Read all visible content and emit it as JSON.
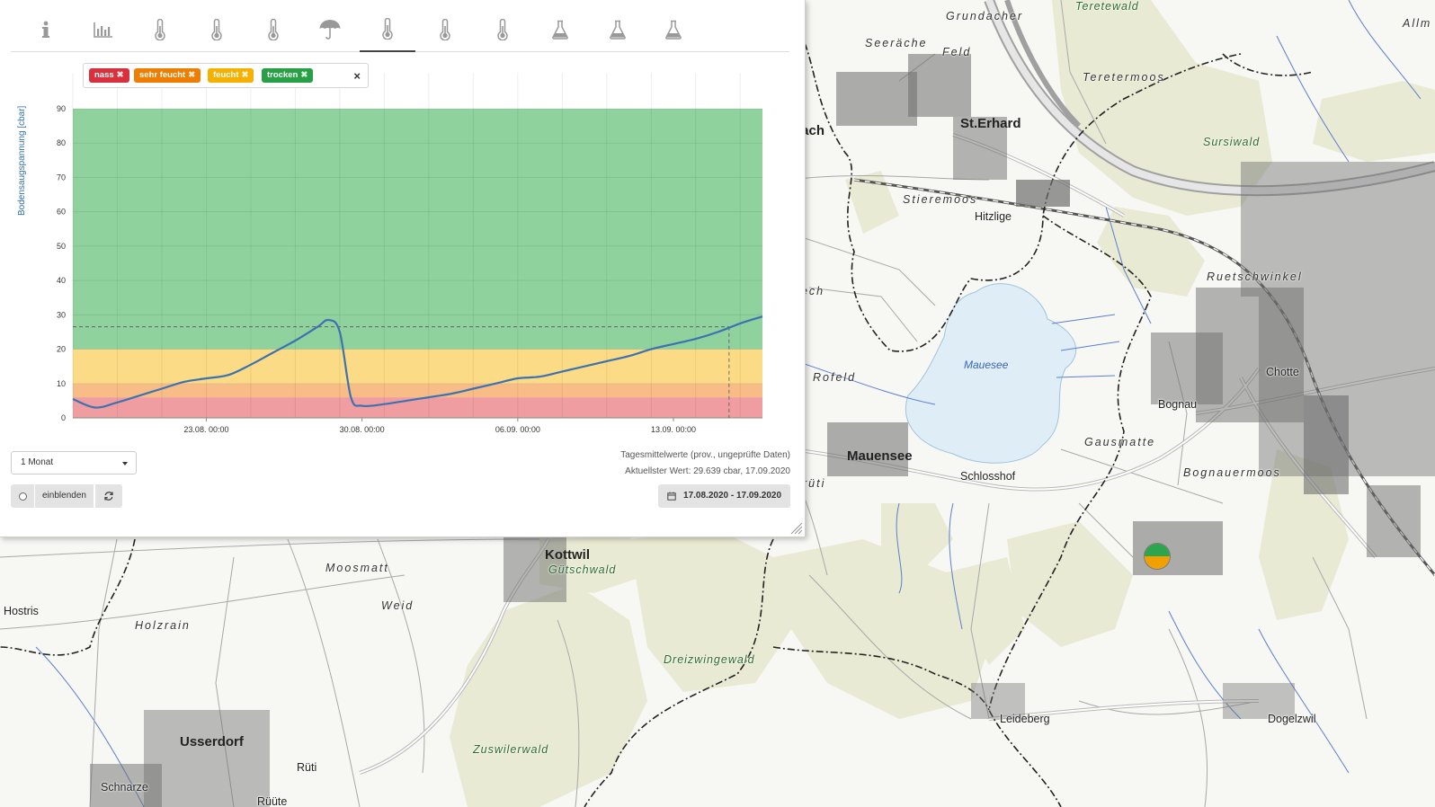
{
  "map": {
    "places": [
      {
        "name": "Grundacher",
        "style": "field"
      },
      {
        "name": "Teretewald",
        "style": "forest"
      },
      {
        "name": "Seeräche",
        "style": "field"
      },
      {
        "name": "Feld",
        "style": "field"
      },
      {
        "name": "Teretermoos",
        "style": "field"
      },
      {
        "name": "Allm",
        "style": "field"
      },
      {
        "name": "bach",
        "style": "big"
      },
      {
        "name": "St.Erhard",
        "style": "big"
      },
      {
        "name": "Sursiwald",
        "style": "forest"
      },
      {
        "name": "Stieremoos",
        "style": "field"
      },
      {
        "name": "Hitzlige",
        "style": "mid"
      },
      {
        "name": "bech",
        "style": "field"
      },
      {
        "name": "Ruetschwinkel",
        "style": "field"
      },
      {
        "name": "Mauesee",
        "style": "water"
      },
      {
        "name": "Rofeld",
        "style": "field"
      },
      {
        "name": "Chotte",
        "style": "mid"
      },
      {
        "name": "Bognau",
        "style": "mid"
      },
      {
        "name": "Gausmatte",
        "style": "field"
      },
      {
        "name": "Mauensee",
        "style": "big"
      },
      {
        "name": "Bognauermoos",
        "style": "field"
      },
      {
        "name": "Schlosshof",
        "style": "mid"
      },
      {
        "name": "rüti",
        "style": "field"
      },
      {
        "name": "Kottwil",
        "style": "big"
      },
      {
        "name": "Gütschwald",
        "style": "forest"
      },
      {
        "name": "Moosmatt",
        "style": "field"
      },
      {
        "name": "Hostris",
        "style": "mid"
      },
      {
        "name": "Weid",
        "style": "field"
      },
      {
        "name": "Holzrain",
        "style": "field"
      },
      {
        "name": "Dreizwingewald",
        "style": "forest"
      },
      {
        "name": "Leideberg",
        "style": "mid"
      },
      {
        "name": "Dogelzwil",
        "style": "mid"
      },
      {
        "name": "Usserdorf",
        "style": "big"
      },
      {
        "name": "Rüti",
        "style": "mid"
      },
      {
        "name": "Zuswilerwald",
        "style": "forest"
      },
      {
        "name": "Schnarze",
        "style": "mid"
      },
      {
        "name": "Rüüte",
        "style": "mid"
      }
    ]
  },
  "tabs": [
    {
      "icon": "info-icon"
    },
    {
      "icon": "bar-chart-icon"
    },
    {
      "icon": "thermometer-icon"
    },
    {
      "icon": "thermometer-icon"
    },
    {
      "icon": "thermometer-icon"
    },
    {
      "icon": "umbrella-icon"
    },
    {
      "icon": "thermometer-icon",
      "active": true
    },
    {
      "icon": "thermometer-icon"
    },
    {
      "icon": "thermometer-icon"
    },
    {
      "icon": "flask-icon"
    },
    {
      "icon": "flask-icon"
    },
    {
      "icon": "flask-icon"
    }
  ],
  "legend": {
    "chips": [
      {
        "label": "nass",
        "color": "#d9303e"
      },
      {
        "label": "sehr feucht",
        "color": "#ef7d00"
      },
      {
        "label": "feucht",
        "color": "#f5b000"
      },
      {
        "label": "trocken",
        "color": "#27a046"
      }
    ],
    "clear_symbol": "×",
    "remove_symbol": "✖"
  },
  "chart_data": {
    "type": "line",
    "ylabel": "Bodensaugspannung [cbar]",
    "xlabel": "",
    "ylim": [
      0,
      90
    ],
    "yticks": [
      0,
      10,
      20,
      30,
      40,
      50,
      60,
      70,
      80,
      90
    ],
    "xlim": [
      "2020-08-17",
      "2020-09-17"
    ],
    "xticks": [
      {
        "date": "2020-08-23",
        "label": "23.08. 00:00"
      },
      {
        "date": "2020-08-30",
        "label": "30.08. 00:00"
      },
      {
        "date": "2020-09-06",
        "label": "06.09. 00:00"
      },
      {
        "date": "2020-09-13",
        "label": "13.09. 00:00"
      }
    ],
    "bands": [
      {
        "name": "nass",
        "from": 0,
        "to": 6,
        "color": "#ef9da0"
      },
      {
        "name": "sehr feucht",
        "from": 6,
        "to": 10,
        "color": "#f8bc86"
      },
      {
        "name": "feucht",
        "from": 10,
        "to": 20,
        "color": "#fbdb85"
      },
      {
        "name": "trocken",
        "from": 20,
        "to": 90,
        "color": "#90d29e"
      }
    ],
    "series": [
      {
        "color": "#3d72b0",
        "x": [
          "2020-08-17",
          "2020-08-18",
          "2020-08-19",
          "2020-08-20",
          "2020-08-21",
          "2020-08-22",
          "2020-08-23",
          "2020-08-24",
          "2020-08-25",
          "2020-08-26",
          "2020-08-27",
          "2020-08-28",
          "2020-08-28T12:00",
          "2020-08-29",
          "2020-08-29T12:00",
          "2020-08-30",
          "2020-08-31",
          "2020-09-01",
          "2020-09-02",
          "2020-09-03",
          "2020-09-04",
          "2020-09-05",
          "2020-09-06",
          "2020-09-07",
          "2020-09-08",
          "2020-09-09",
          "2020-09-10",
          "2020-09-11",
          "2020-09-12",
          "2020-09-13",
          "2020-09-14",
          "2020-09-15",
          "2020-09-16",
          "2020-09-17"
        ],
        "y": [
          5.5,
          3.0,
          4.5,
          6.5,
          8.5,
          10.5,
          11.5,
          12.5,
          15.5,
          19.0,
          22.5,
          26.5,
          28.5,
          25.0,
          6.0,
          3.5,
          4.0,
          5.0,
          6.0,
          7.0,
          8.5,
          10.0,
          11.5,
          12.0,
          13.5,
          15.0,
          16.5,
          18.0,
          20.0,
          21.5,
          23.0,
          25.0,
          27.5,
          29.5
        ]
      }
    ],
    "marker": {
      "date": "2020-09-15T12:00",
      "value": 26.5
    }
  },
  "controls": {
    "period_value": "1 Monat",
    "show_label": "einblenden",
    "info_line1": "Tagesmittelwerte (prov., ungeprüfte Daten)",
    "info_line2": "Aktuellster Wert: 29.639 cbar, 17.09.2020",
    "date_range": "17.08.2020 - 17.09.2020"
  },
  "station": {
    "top_color": "#2da44e",
    "bottom_color": "#f0a000"
  }
}
